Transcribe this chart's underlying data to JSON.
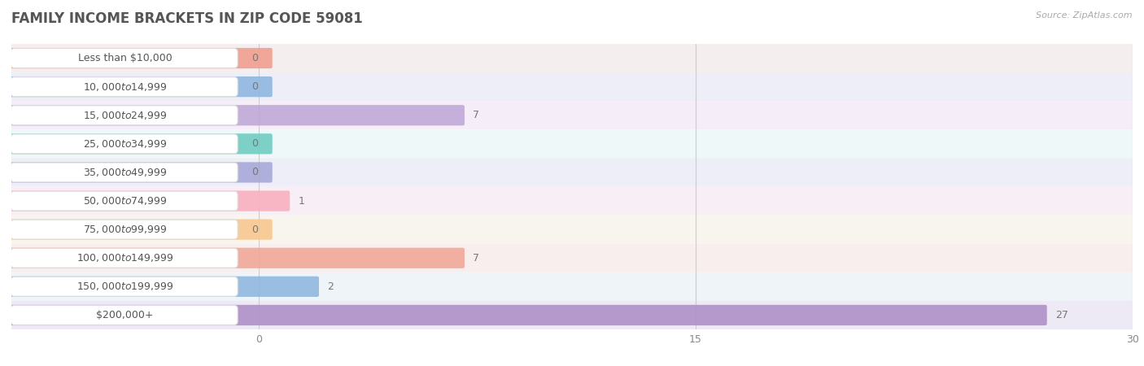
{
  "title": "FAMILY INCOME BRACKETS IN ZIP CODE 59081",
  "source": "Source: ZipAtlas.com",
  "categories": [
    "Less than $10,000",
    "$10,000 to $14,999",
    "$15,000 to $24,999",
    "$25,000 to $34,999",
    "$35,000 to $49,999",
    "$50,000 to $74,999",
    "$75,000 to $99,999",
    "$100,000 to $149,999",
    "$150,000 to $199,999",
    "$200,000+"
  ],
  "values": [
    0,
    0,
    7,
    0,
    0,
    1,
    0,
    7,
    2,
    27
  ],
  "bar_colors": [
    "#f0a090",
    "#90b8e0",
    "#c0a8d8",
    "#70ccc0",
    "#a8a8d8",
    "#f8b0c0",
    "#f8c890",
    "#f0a898",
    "#90b8e0",
    "#b090c8"
  ],
  "row_bg_colors": [
    "#f5eeee",
    "#eeeef8",
    "#f5eef8",
    "#eef8f8",
    "#eeeef8",
    "#f8eef5",
    "#f8f4ee",
    "#f8eeee",
    "#eef4f8",
    "#eeeaf5"
  ],
  "xlim": [
    0,
    30
  ],
  "xticks": [
    0,
    15,
    30
  ],
  "background_color": "#ffffff",
  "title_fontsize": 12,
  "label_fontsize": 9,
  "value_fontsize": 9
}
